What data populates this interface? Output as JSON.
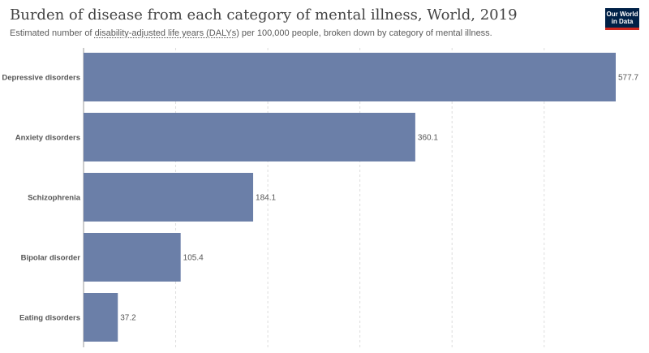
{
  "title": "Burden of disease from each category of mental illness, World, 2019",
  "subtitle": {
    "prefix": "Estimated number of ",
    "link": "disability-adjusted life years (DALYs)",
    "suffix": " per 100,000 people, broken down by category of mental illness."
  },
  "logo": {
    "line1": "Our World",
    "line2": "in Data"
  },
  "colors": {
    "bar": "#6b7fa8",
    "grid": "#dddddd",
    "axis": "#999999"
  },
  "chart_data": {
    "type": "bar",
    "orientation": "horizontal",
    "categories": [
      "Depressive disorders",
      "Anxiety disorders",
      "Schizophrenia",
      "Bipolar disorder",
      "Eating disorders"
    ],
    "values": [
      577.7,
      360.1,
      184.1,
      105.4,
      37.2
    ],
    "value_labels": [
      "577.7",
      "360.1",
      "184.1",
      "105.4",
      "37.2"
    ],
    "xlim": [
      0,
      577.7
    ],
    "grid": "vertical-dashed",
    "gridlines": [
      0,
      100,
      200,
      300,
      400,
      500
    ]
  }
}
